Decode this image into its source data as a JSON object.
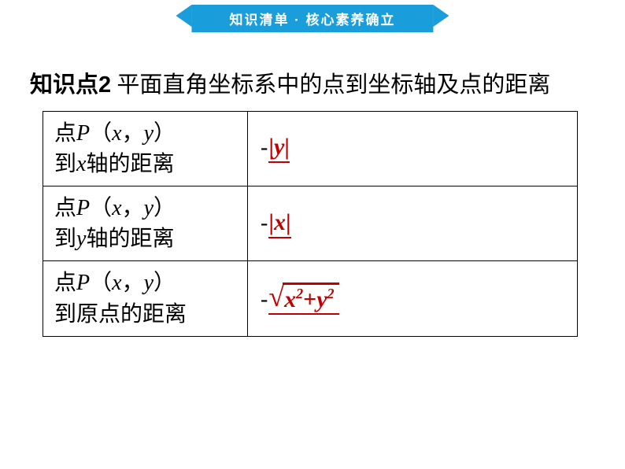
{
  "banner": {
    "text": "知识清单 · 核心素养确立",
    "bg_color": "#1a9edb",
    "text_color": "#ffffff",
    "fontsize": 17
  },
  "title": {
    "bold_part": "知识点2",
    "rest": " 平面直角坐标系中的点到坐标轴及点的距离",
    "fontsize": 29,
    "color": "#000000"
  },
  "table": {
    "border_color": "#000000",
    "rows": [
      {
        "left_prefix": "点",
        "left_var": "P",
        "left_paren": "（",
        "left_x": "x",
        "left_comma": "，",
        "left_y": "y",
        "left_rparen": "）",
        "left_line2_pre": " 到",
        "left_line2_var": "x",
        "left_line2_post": "轴的距离",
        "formula_type": "abs",
        "formula_var": "y",
        "formula_color": "#c00000"
      },
      {
        "left_prefix": "点",
        "left_var": "P",
        "left_paren": "（",
        "left_x": "x",
        "left_comma": "，",
        "left_y": "y",
        "left_rparen": "）",
        "left_line2_pre": "到",
        "left_line2_var": "y",
        "left_line2_post": "轴的距离",
        "formula_type": "abs",
        "formula_var": "x",
        "formula_color": "#c00000"
      },
      {
        "left_prefix": "点",
        "left_var": "P",
        "left_paren": "（",
        "left_x": "x",
        "left_comma": "，",
        "left_y": "y",
        "left_rparen": "）",
        "left_line2_pre": "到原点的距离",
        "left_line2_var": "",
        "left_line2_post": "",
        "formula_type": "sqrt",
        "formula_x": "x",
        "formula_x_exp": "2",
        "formula_plus": "+",
        "formula_y": "y",
        "formula_y_exp": "2",
        "formula_color": "#c00000"
      }
    ]
  }
}
